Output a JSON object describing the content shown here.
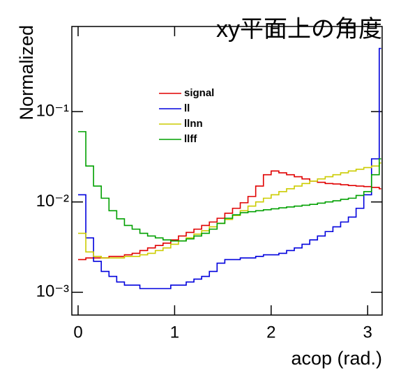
{
  "chart_data": {
    "type": "histogram",
    "title": "xy平面上の角度",
    "x_label": "acop (rad.)",
    "y_label": "Normalized",
    "log_y": true,
    "legend": "upper-left",
    "bins": [
      0,
      0.08,
      0.16,
      0.24,
      0.32,
      0.4,
      0.48,
      0.56,
      0.64,
      0.72,
      0.8,
      0.88,
      0.96,
      1.04,
      1.12,
      1.2,
      1.28,
      1.36,
      1.44,
      1.52,
      1.6,
      1.68,
      1.76,
      1.84,
      1.92,
      2.0,
      2.08,
      2.16,
      2.24,
      2.32,
      2.4,
      2.48,
      2.56,
      2.64,
      2.72,
      2.8,
      2.88,
      2.96,
      3.04,
      3.12,
      3.14
    ],
    "series": [
      {
        "name": "signal",
        "color": "#e00000",
        "values": [
          0.0023,
          0.0024,
          0.0024,
          0.0024,
          0.0025,
          0.0025,
          0.0026,
          0.0027,
          0.0029,
          0.0031,
          0.0033,
          0.0035,
          0.0038,
          0.0042,
          0.0046,
          0.005,
          0.0055,
          0.006,
          0.0066,
          0.0075,
          0.0085,
          0.0098,
          0.0115,
          0.015,
          0.02,
          0.022,
          0.021,
          0.02,
          0.019,
          0.018,
          0.017,
          0.0165,
          0.016,
          0.0158,
          0.0155,
          0.0152,
          0.015,
          0.0148,
          0.0145,
          0.014
        ]
      },
      {
        "name": "ll",
        "color": "#0000dd",
        "values": [
          0.012,
          0.004,
          0.0022,
          0.0017,
          0.0015,
          0.0013,
          0.0012,
          0.0012,
          0.0011,
          0.0011,
          0.0011,
          0.0011,
          0.0012,
          0.0012,
          0.0013,
          0.0014,
          0.0015,
          0.0017,
          0.0021,
          0.0023,
          0.0023,
          0.0024,
          0.0024,
          0.0025,
          0.0026,
          0.0026,
          0.0027,
          0.0029,
          0.0031,
          0.0034,
          0.0038,
          0.0042,
          0.0047,
          0.0053,
          0.006,
          0.0068,
          0.0085,
          0.012,
          0.03,
          0.5
        ]
      },
      {
        "name": "llnn",
        "color": "#cccc00",
        "values": [
          0.0045,
          0.0028,
          0.0025,
          0.0024,
          0.0024,
          0.0024,
          0.0025,
          0.0025,
          0.0026,
          0.0027,
          0.0029,
          0.0031,
          0.0034,
          0.0037,
          0.004,
          0.0044,
          0.0048,
          0.0053,
          0.0058,
          0.0064,
          0.0071,
          0.008,
          0.009,
          0.01,
          0.011,
          0.012,
          0.013,
          0.014,
          0.015,
          0.016,
          0.017,
          0.018,
          0.019,
          0.02,
          0.021,
          0.022,
          0.023,
          0.024,
          0.025,
          0.027
        ]
      },
      {
        "name": "llff",
        "color": "#00a000",
        "values": [
          0.06,
          0.025,
          0.015,
          0.011,
          0.008,
          0.0065,
          0.0055,
          0.005,
          0.0045,
          0.0042,
          0.004,
          0.0038,
          0.0037,
          0.0037,
          0.0039,
          0.0042,
          0.0045,
          0.005,
          0.0058,
          0.0066,
          0.0072,
          0.0076,
          0.0078,
          0.008,
          0.0082,
          0.0084,
          0.0086,
          0.0088,
          0.009,
          0.0092,
          0.0094,
          0.0097,
          0.01,
          0.0103,
          0.0107,
          0.011,
          0.0118,
          0.013,
          0.02,
          0.03
        ]
      }
    ],
    "xlim": [
      -0.065,
      3.15
    ],
    "xticks": [
      0,
      1,
      2,
      3
    ],
    "ylim": [
      0.00056,
      0.875
    ],
    "yticks": [
      {
        "value": 0.001,
        "label": "10⁻³"
      },
      {
        "value": 0.01,
        "label": "10⁻²"
      },
      {
        "value": 0.1,
        "label": "10⁻¹"
      }
    ]
  }
}
